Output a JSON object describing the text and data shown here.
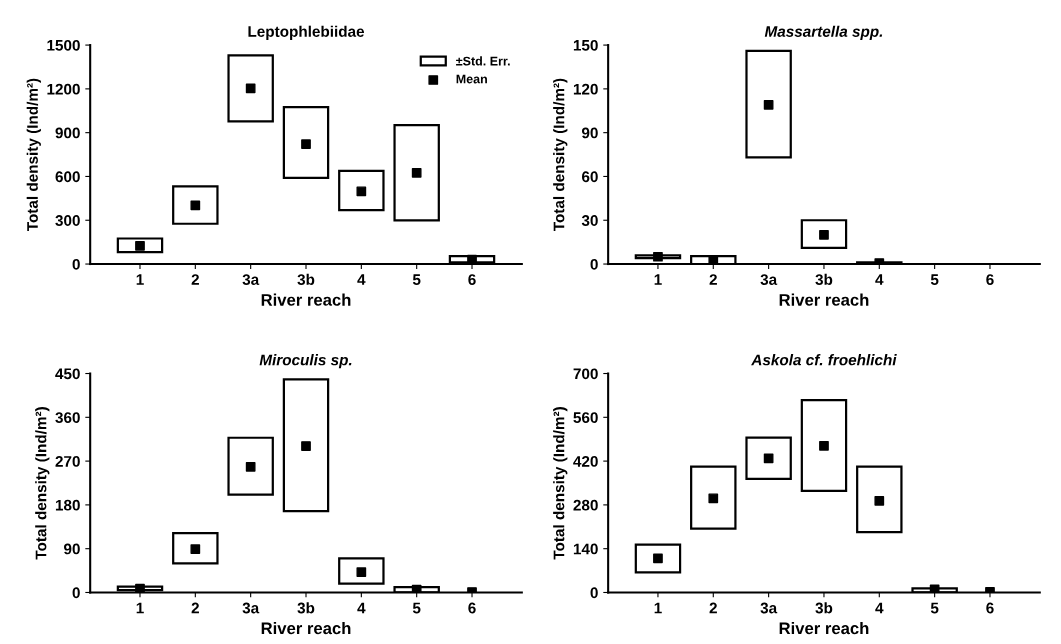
{
  "chart_data": [
    {
      "type": "bar",
      "title": "Leptophlebiidae",
      "xlabel": "River reach",
      "ylabel": "Total density (Ind/m²)",
      "categories": [
        "1",
        "2",
        "3a",
        "3b",
        "4",
        "5",
        "6"
      ],
      "ylim": [
        0,
        1500
      ],
      "yticks": [
        0,
        300,
        600,
        900,
        1200,
        1500
      ],
      "legend": "top right",
      "marker": "square",
      "series": [
        {
          "name": "±Std. Err.",
          "color": "#ffffff",
          "base": [
            82,
            276,
            977,
            591,
            369,
            299,
            12
          ],
          "values": [
            93,
            256,
            453,
            484,
            269,
            652,
            42
          ]
        },
        {
          "type": "scatter",
          "name": "Mean",
          "color": "#000000",
          "values": [
            124,
            402,
            1203,
            822,
            498,
            624,
            30
          ]
        }
      ]
    },
    {
      "type": "bar",
      "title": "Massartella spp.",
      "xlabel": "River reach",
      "ylabel": "Total density (Ind/m²)",
      "categories": [
        "1",
        "2",
        "3a",
        "3b",
        "4",
        "5",
        "6"
      ],
      "ylim": [
        0,
        150
      ],
      "yticks": [
        0,
        30,
        60,
        90,
        120,
        150
      ],
      "marker": "square",
      "series": [
        {
          "color": "#ffffff",
          "base": [
            4,
            0,
            73,
            11,
            0.3,
            null,
            null
          ],
          "values": [
            2,
            5.4,
            73,
            19,
            0.9,
            null,
            null
          ]
        },
        {
          "type": "scatter",
          "color": "#000000",
          "values": [
            5,
            2.7,
            109,
            20,
            0.7,
            null,
            null
          ]
        }
      ]
    },
    {
      "type": "bar",
      "title": "Miroculis sp.",
      "xlabel": "River reach",
      "ylabel": "Total density (Ind/m²)",
      "categories": [
        "1",
        "2",
        "3a",
        "3b",
        "4",
        "5",
        "6"
      ],
      "ylim": [
        0,
        450
      ],
      "yticks": [
        0,
        90,
        180,
        270,
        360,
        450
      ],
      "marker": "square",
      "series": [
        {
          "color": "#ffffff",
          "base": [
            5,
            60,
            201,
            167,
            18,
            0,
            null
          ],
          "values": [
            7,
            62,
            117,
            271,
            52,
            11,
            null
          ]
        },
        {
          "type": "scatter",
          "color": "#000000",
          "values": [
            8,
            89,
            258,
            301,
            42,
            6,
            1
          ]
        }
      ]
    },
    {
      "type": "bar",
      "title": "Askola cf. froehlichi",
      "xlabel": "River reach",
      "ylabel": "Total density (Ind/m²)",
      "categories": [
        "1",
        "2",
        "3a",
        "3b",
        "4",
        "5",
        "6"
      ],
      "ylim": [
        0,
        700
      ],
      "yticks": [
        0,
        140,
        280,
        420,
        560,
        700
      ],
      "marker": "square",
      "series": [
        {
          "color": "#ffffff",
          "base": [
            64,
            204,
            363,
            325,
            193,
            0,
            null
          ],
          "values": [
            89,
            198,
            132,
            290,
            209,
            13,
            null
          ]
        },
        {
          "type": "scatter",
          "color": "#000000",
          "values": [
            109,
            301,
            429,
            469,
            293,
            10,
            2
          ]
        }
      ]
    }
  ]
}
